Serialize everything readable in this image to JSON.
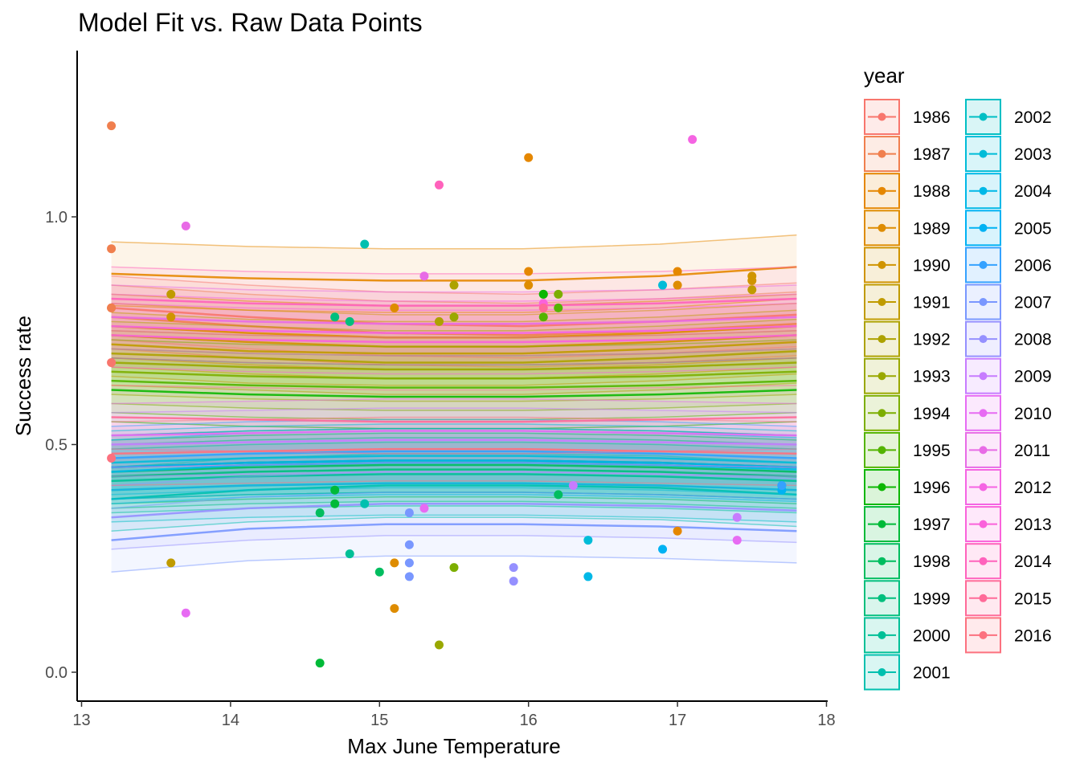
{
  "chart_data": {
    "type": "scatter",
    "title": "Model Fit vs. Raw Data Points",
    "xlabel": "Max June Temperature",
    "ylabel": "Success rate",
    "xlim": [
      13,
      18
    ],
    "ylim": [
      0,
      1.2
    ],
    "x_ticks": [
      "13",
      "14",
      "15",
      "16",
      "17",
      "18"
    ],
    "y_ticks": [
      "0.0",
      "0.5",
      "1.0"
    ],
    "grid": false,
    "legend_title": "year",
    "legend_position": "right",
    "series": [
      {
        "name": "1986",
        "color": "#F8766D",
        "fit": [
          0.8,
          0.78,
          0.765,
          0.76,
          0.77,
          0.785
        ],
        "points": [
          [
            13.2,
            0.8
          ],
          [
            13.2,
            0.68
          ]
        ]
      },
      {
        "name": "1987",
        "color": "#F07F4E",
        "fit": [
          0.78,
          0.76,
          0.745,
          0.74,
          0.75,
          0.765
        ],
        "points": [
          [
            13.2,
            1.2
          ],
          [
            13.2,
            0.93
          ],
          [
            13.2,
            0.8
          ]
        ]
      },
      {
        "name": "1988",
        "color": "#E58700",
        "fit": [
          0.875,
          0.865,
          0.86,
          0.86,
          0.87,
          0.89
        ],
        "points": [
          [
            16.0,
            1.13
          ],
          [
            16.0,
            0.88
          ],
          [
            17.0,
            0.88
          ],
          [
            17.0,
            0.31
          ]
        ]
      },
      {
        "name": "1989",
        "color": "#DE8C00",
        "fit": [
          0.76,
          0.745,
          0.735,
          0.735,
          0.745,
          0.76
        ],
        "points": [
          [
            16.0,
            0.85
          ],
          [
            17.0,
            0.85
          ],
          [
            15.1,
            0.8
          ],
          [
            15.1,
            0.24
          ],
          [
            15.1,
            0.14
          ]
        ]
      },
      {
        "name": "1990",
        "color": "#D09400",
        "fit": [
          0.74,
          0.725,
          0.715,
          0.715,
          0.725,
          0.74
        ],
        "points": [
          [
            17.5,
            0.86
          ],
          [
            17.5,
            0.87
          ],
          [
            13.6,
            0.78
          ]
        ]
      },
      {
        "name": "1991",
        "color": "#C09B00",
        "fit": [
          0.72,
          0.705,
          0.7,
          0.7,
          0.71,
          0.725
        ],
        "points": [
          [
            13.6,
            0.83
          ],
          [
            13.6,
            0.24
          ],
          [
            17.5,
            0.84
          ]
        ]
      },
      {
        "name": "1992",
        "color": "#ADA200",
        "fit": [
          0.7,
          0.69,
          0.68,
          0.68,
          0.69,
          0.705
        ],
        "points": [
          [
            15.5,
            0.85
          ],
          [
            15.4,
            0.77
          ]
        ]
      },
      {
        "name": "1993",
        "color": "#99A800",
        "fit": [
          0.68,
          0.67,
          0.665,
          0.665,
          0.67,
          0.68
        ],
        "points": [
          [
            15.4,
            0.06
          ],
          [
            15.5,
            0.78
          ]
        ]
      },
      {
        "name": "1994",
        "color": "#7CAE00",
        "fit": [
          0.66,
          0.65,
          0.645,
          0.645,
          0.65,
          0.66
        ],
        "points": [
          [
            15.5,
            0.23
          ],
          [
            16.1,
            0.83
          ],
          [
            16.2,
            0.83
          ]
        ]
      },
      {
        "name": "1995",
        "color": "#53B400",
        "fit": [
          0.64,
          0.63,
          0.625,
          0.625,
          0.63,
          0.64
        ],
        "points": [
          [
            16.1,
            0.78
          ],
          [
            16.2,
            0.8
          ]
        ]
      },
      {
        "name": "1996",
        "color": "#0CB702",
        "fit": [
          0.62,
          0.61,
          0.605,
          0.605,
          0.61,
          0.62
        ],
        "points": [
          [
            16.1,
            0.83
          ]
        ]
      },
      {
        "name": "1997",
        "color": "#00BA38",
        "fit": [
          0.45,
          0.46,
          0.465,
          0.465,
          0.46,
          0.45
        ],
        "points": [
          [
            14.6,
            0.02
          ],
          [
            14.7,
            0.4
          ],
          [
            14.7,
            0.37
          ]
        ]
      },
      {
        "name": "1998",
        "color": "#00BD5F",
        "fit": [
          0.44,
          0.45,
          0.455,
          0.455,
          0.45,
          0.44
        ],
        "points": [
          [
            15.0,
            0.22
          ],
          [
            14.6,
            0.35
          ],
          [
            16.2,
            0.39
          ]
        ]
      },
      {
        "name": "1999",
        "color": "#00BF7D",
        "fit": [
          0.43,
          0.44,
          0.445,
          0.445,
          0.44,
          0.43
        ],
        "points": [
          [
            14.7,
            0.78
          ],
          [
            14.8,
            0.77
          ]
        ]
      },
      {
        "name": "2000",
        "color": "#00C097",
        "fit": [
          0.42,
          0.43,
          0.435,
          0.435,
          0.43,
          0.42
        ],
        "points": [
          [
            14.8,
            0.26
          ]
        ]
      },
      {
        "name": "2001",
        "color": "#00C0AF",
        "fit": [
          0.38,
          0.4,
          0.41,
          0.41,
          0.405,
          0.39
        ],
        "points": [
          [
            14.9,
            0.94
          ],
          [
            14.9,
            0.37
          ]
        ]
      },
      {
        "name": "2002",
        "color": "#00BFC4",
        "fit": [
          0.4,
          0.41,
          0.415,
          0.415,
          0.41,
          0.4
        ],
        "points": [
          [
            17.7,
            0.41
          ]
        ]
      },
      {
        "name": "2003",
        "color": "#00BCD8",
        "fit": [
          0.46,
          0.47,
          0.475,
          0.475,
          0.47,
          0.46
        ],
        "points": [
          [
            16.4,
            0.29
          ],
          [
            16.9,
            0.85
          ]
        ]
      },
      {
        "name": "2004",
        "color": "#00B8E7",
        "fit": [
          0.44,
          0.455,
          0.46,
          0.46,
          0.455,
          0.445
        ],
        "points": [
          [
            16.4,
            0.21
          ]
        ]
      },
      {
        "name": "2005",
        "color": "#00B2F3",
        "fit": [
          0.45,
          0.46,
          0.465,
          0.465,
          0.46,
          0.45
        ],
        "points": [
          [
            16.9,
            0.27
          ],
          [
            17.7,
            0.4
          ]
        ]
      },
      {
        "name": "2006",
        "color": "#35A2FF",
        "fit": [
          0.47,
          0.48,
          0.485,
          0.485,
          0.48,
          0.47
        ],
        "points": [
          [
            17.7,
            0.41
          ]
        ]
      },
      {
        "name": "2007",
        "color": "#7997FF",
        "fit": [
          0.29,
          0.315,
          0.325,
          0.325,
          0.32,
          0.31
        ],
        "points": [
          [
            15.2,
            0.35
          ],
          [
            15.2,
            0.28
          ],
          [
            15.2,
            0.24
          ],
          [
            15.2,
            0.21
          ]
        ]
      },
      {
        "name": "2008",
        "color": "#9590FF",
        "fit": [
          0.34,
          0.36,
          0.37,
          0.37,
          0.365,
          0.355
        ],
        "points": [
          [
            15.9,
            0.23
          ],
          [
            15.9,
            0.2
          ]
        ]
      },
      {
        "name": "2009",
        "color": "#C77CFF",
        "fit": [
          0.5,
          0.505,
          0.51,
          0.51,
          0.505,
          0.5
        ],
        "points": [
          [
            16.3,
            0.41
          ],
          [
            17.4,
            0.34
          ]
        ]
      },
      {
        "name": "2010",
        "color": "#E76BF3",
        "fit": [
          0.52,
          0.525,
          0.53,
          0.53,
          0.525,
          0.52
        ],
        "points": [
          [
            13.7,
            0.13
          ],
          [
            17.4,
            0.29
          ],
          [
            15.3,
            0.36
          ]
        ]
      },
      {
        "name": "2011",
        "color": "#E86BE6",
        "fit": [
          0.78,
          0.77,
          0.765,
          0.765,
          0.77,
          0.78
        ],
        "points": [
          [
            13.7,
            0.98
          ],
          [
            15.3,
            0.87
          ]
        ]
      },
      {
        "name": "2012",
        "color": "#F564E3",
        "fit": [
          0.76,
          0.75,
          0.745,
          0.745,
          0.75,
          0.76
        ],
        "points": [
          [
            17.1,
            1.17
          ]
        ]
      },
      {
        "name": "2013",
        "color": "#FA62DB",
        "fit": [
          0.74,
          0.73,
          0.725,
          0.725,
          0.73,
          0.74
        ],
        "points": [
          [
            16.1,
            0.81
          ]
        ]
      },
      {
        "name": "2014",
        "color": "#FF62BC",
        "fit": [
          0.82,
          0.81,
          0.805,
          0.805,
          0.81,
          0.82
        ],
        "points": [
          [
            15.4,
            1.07
          ]
        ]
      },
      {
        "name": "2015",
        "color": "#FF6A98",
        "fit": [
          0.56,
          0.555,
          0.55,
          0.55,
          0.555,
          0.56
        ],
        "points": [
          [
            16.1,
            0.8
          ]
        ]
      },
      {
        "name": "2016",
        "color": "#FC717F",
        "fit": [
          0.48,
          0.485,
          0.49,
          0.49,
          0.485,
          0.48
        ],
        "points": [
          [
            13.2,
            0.47
          ]
        ]
      }
    ]
  }
}
